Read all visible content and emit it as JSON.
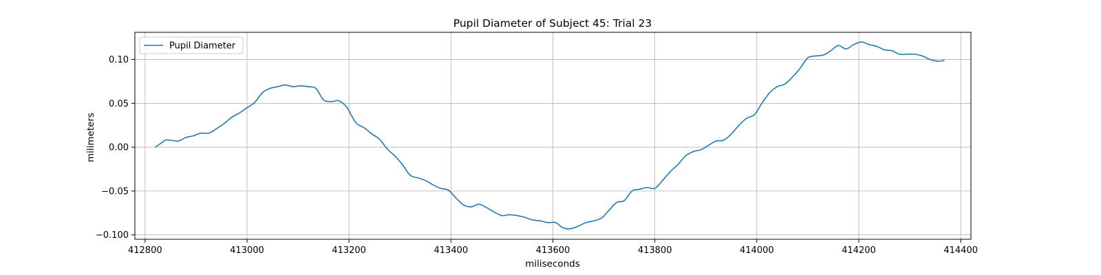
{
  "chart_data": {
    "type": "line",
    "title": "Pupil Diameter of Subject 45: Trial 23",
    "xlabel": "miliseconds",
    "ylabel": "milimeters",
    "xlim": [
      412780,
      414420
    ],
    "ylim": [
      -0.105,
      0.131
    ],
    "xticks": [
      412800,
      413000,
      413200,
      413400,
      413600,
      413800,
      414000,
      414200,
      414400
    ],
    "yticks": [
      -0.1,
      -0.05,
      0.0,
      0.05,
      0.1
    ],
    "xtick_labels": [
      "412800",
      "413000",
      "413200",
      "413400",
      "413600",
      "413800",
      "414000",
      "414200",
      "414400"
    ],
    "ytick_labels": [
      "−0.100",
      "−0.05",
      "0.00",
      "0.05",
      "0.10"
    ],
    "grid": true,
    "legend": {
      "position": "top-left",
      "entries": [
        "Pupil Diameter"
      ]
    },
    "series": [
      {
        "name": "Pupil Diameter",
        "color": "#1f77b4",
        "points": [
          [
            412820,
            0.0
          ],
          [
            412830,
            0.004
          ],
          [
            412840,
            0.008
          ],
          [
            412850,
            0.008
          ],
          [
            412865,
            0.007
          ],
          [
            412880,
            0.011
          ],
          [
            412895,
            0.013
          ],
          [
            412910,
            0.016
          ],
          [
            412925,
            0.016
          ],
          [
            412940,
            0.021
          ],
          [
            412955,
            0.027
          ],
          [
            412970,
            0.034
          ],
          [
            412985,
            0.039
          ],
          [
            413000,
            0.045
          ],
          [
            413015,
            0.051
          ],
          [
            413030,
            0.062
          ],
          [
            413045,
            0.067
          ],
          [
            413060,
            0.069
          ],
          [
            413075,
            0.071
          ],
          [
            413090,
            0.069
          ],
          [
            413105,
            0.07
          ],
          [
            413120,
            0.069
          ],
          [
            413135,
            0.067
          ],
          [
            413150,
            0.054
          ],
          [
            413165,
            0.052
          ],
          [
            413180,
            0.053
          ],
          [
            413195,
            0.046
          ],
          [
            413205,
            0.036
          ],
          [
            413215,
            0.027
          ],
          [
            413230,
            0.022
          ],
          [
            413245,
            0.015
          ],
          [
            413260,
            0.009
          ],
          [
            413275,
            -0.002
          ],
          [
            413290,
            -0.01
          ],
          [
            413305,
            -0.02
          ],
          [
            413320,
            -0.032
          ],
          [
            413335,
            -0.035
          ],
          [
            413350,
            -0.038
          ],
          [
            413365,
            -0.043
          ],
          [
            413380,
            -0.047
          ],
          [
            413395,
            -0.049
          ],
          [
            413410,
            -0.058
          ],
          [
            413425,
            -0.066
          ],
          [
            413440,
            -0.068
          ],
          [
            413455,
            -0.065
          ],
          [
            413470,
            -0.069
          ],
          [
            413485,
            -0.074
          ],
          [
            413500,
            -0.078
          ],
          [
            413515,
            -0.077
          ],
          [
            413530,
            -0.078
          ],
          [
            413545,
            -0.08
          ],
          [
            413560,
            -0.083
          ],
          [
            413575,
            -0.084
          ],
          [
            413590,
            -0.086
          ],
          [
            413605,
            -0.086
          ],
          [
            413620,
            -0.092
          ],
          [
            413635,
            -0.093
          ],
          [
            413650,
            -0.09
          ],
          [
            413665,
            -0.086
          ],
          [
            413680,
            -0.084
          ],
          [
            413695,
            -0.081
          ],
          [
            413710,
            -0.072
          ],
          [
            413725,
            -0.063
          ],
          [
            413740,
            -0.061
          ],
          [
            413755,
            -0.05
          ],
          [
            413770,
            -0.048
          ],
          [
            413785,
            -0.046
          ],
          [
            413800,
            -0.047
          ],
          [
            413815,
            -0.038
          ],
          [
            413830,
            -0.028
          ],
          [
            413845,
            -0.02
          ],
          [
            413860,
            -0.01
          ],
          [
            413875,
            -0.005
          ],
          [
            413890,
            -0.003
          ],
          [
            413905,
            0.002
          ],
          [
            413920,
            0.007
          ],
          [
            413935,
            0.008
          ],
          [
            413950,
            0.015
          ],
          [
            413965,
            0.025
          ],
          [
            413980,
            0.033
          ],
          [
            413995,
            0.037
          ],
          [
            414010,
            0.05
          ],
          [
            414025,
            0.062
          ],
          [
            414040,
            0.069
          ],
          [
            414055,
            0.072
          ],
          [
            414070,
            0.08
          ],
          [
            414085,
            0.09
          ],
          [
            414100,
            0.102
          ],
          [
            414115,
            0.104
          ],
          [
            414130,
            0.105
          ],
          [
            414145,
            0.11
          ],
          [
            414160,
            0.116
          ],
          [
            414175,
            0.112
          ],
          [
            414190,
            0.117
          ],
          [
            414205,
            0.12
          ],
          [
            414220,
            0.117
          ],
          [
            414235,
            0.115
          ],
          [
            414250,
            0.111
          ],
          [
            414265,
            0.11
          ],
          [
            414280,
            0.106
          ],
          [
            414295,
            0.106
          ],
          [
            414310,
            0.106
          ],
          [
            414325,
            0.104
          ],
          [
            414340,
            0.1
          ],
          [
            414355,
            0.098
          ],
          [
            414368,
            0.099
          ]
        ]
      }
    ]
  }
}
